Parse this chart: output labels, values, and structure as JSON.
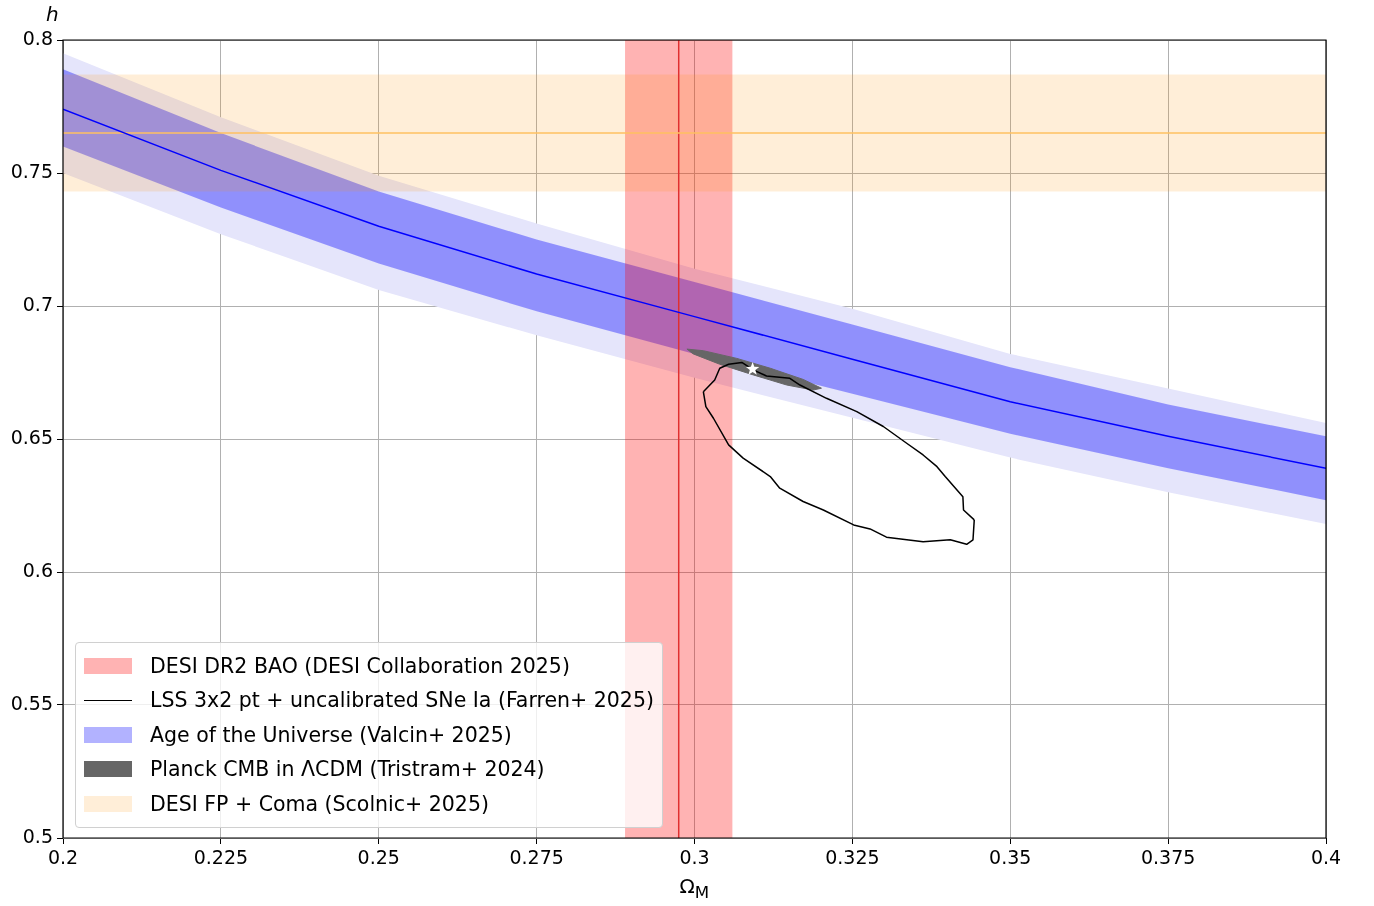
{
  "chart_data": {
    "type": "line",
    "xlabel": "Ω$_{M}$",
    "ylabel": "h",
    "xlim": [
      0.2,
      0.4
    ],
    "ylim": [
      0.5,
      0.8
    ],
    "xticks": [
      0.2,
      0.225,
      0.25,
      0.275,
      0.3,
      0.325,
      0.35,
      0.375,
      0.4
    ],
    "yticks": [
      0.5,
      0.55,
      0.6,
      0.65,
      0.7,
      0.75,
      0.8
    ],
    "grid": true,
    "legend": "bottom left",
    "bands": [
      {
        "axis": "x",
        "from": 0.289,
        "to": 0.306,
        "label": "DESI DR2 BAO (DESI Collaboration 2025)",
        "color": "#ffb3b3"
      },
      {
        "axis": "y",
        "from": 0.743,
        "to": 0.787,
        "label": "DESI FP + Coma (Scolnic+ 2025)",
        "color": "#ffeed8"
      }
    ],
    "ref_lines": [
      {
        "axis": "x",
        "value": 0.2975,
        "color": "#e03030"
      },
      {
        "axis": "y",
        "value": 0.765,
        "color": "#ffc060"
      }
    ],
    "series": [
      {
        "name": "LSS 3x2 pt + uncalibrated SNe Ia (Farren+ 2025)",
        "color": "#000000",
        "x": [
          0.3014,
          0.3032,
          0.304,
          0.3054,
          0.3075,
          0.3093,
          0.3114,
          0.3151,
          0.3167,
          0.3209,
          0.3257,
          0.3299,
          0.3336,
          0.3362,
          0.3384,
          0.3397,
          0.3425,
          0.3426,
          0.3443
        ],
        "values": [
          0.6678,
          0.6722,
          0.6766,
          0.6781,
          0.6788,
          0.676,
          0.6737,
          0.6728,
          0.6703,
          0.6653,
          0.6603,
          0.6547,
          0.6484,
          0.644,
          0.6396,
          0.6359,
          0.6283,
          0.6233,
          0.6196
        ]
      },
      {
        "color": "#000000",
        "x": [
          0.3014,
          0.3018,
          0.303,
          0.3054,
          0.3077,
          0.312,
          0.3135,
          0.3172,
          0.3204,
          0.3252,
          0.3278,
          0.3304,
          0.3362,
          0.3405,
          0.3431,
          0.3441,
          0.3443
        ],
        "values": [
          0.6678,
          0.6622,
          0.6578,
          0.6478,
          0.6428,
          0.6359,
          0.6315,
          0.6265,
          0.6233,
          0.6177,
          0.6162,
          0.6131,
          0.6114,
          0.6121,
          0.6104,
          0.6121,
          0.6196
        ]
      },
      {
        "type": "line",
        "color": "#e5e5fb",
        "x": [
          0.2,
          0.225,
          0.25,
          0.275,
          0.3,
          0.325,
          0.35,
          0.375,
          0.4
        ],
        "values": [
          null,
          null,
          null,
          null,
          null,
          null,
          null,
          null,
          null
        ],
        "lower": [
          0.75,
          0.727,
          0.706,
          0.689,
          0.673,
          0.658,
          0.643,
          0.63,
          0.618
        ],
        "upper": [
          0.795,
          0.771,
          0.749,
          0.731,
          0.714,
          0.699,
          0.682,
          0.669,
          0.656
        ]
      },
      {
        "name": "Age of the Universe (Valcin+ 2025)",
        "color": "#0000ff",
        "x": [
          0.2,
          0.225,
          0.25,
          0.275,
          0.3,
          0.325,
          0.35,
          0.375,
          0.4
        ],
        "values": [
          0.774,
          0.751,
          0.73,
          0.712,
          0.696,
          0.68,
          0.664,
          0.651,
          0.639
        ],
        "lower": [
          0.76,
          0.737,
          0.716,
          0.698,
          0.682,
          0.667,
          0.652,
          0.639,
          0.627
        ],
        "upper": [
          0.789,
          0.765,
          0.743,
          0.725,
          0.709,
          0.693,
          0.677,
          0.663,
          0.651
        ]
      },
      {
        "name": "Planck CMB in ΛCDM (Tristram+ 2024)",
        "type": "area",
        "color": "#666666",
        "x": [
          0.2988,
          0.3014,
          0.3067,
          0.312,
          0.3172,
          0.3201,
          0.3188,
          0.3146,
          0.3093,
          0.304,
          0.2998,
          0.2988
        ],
        "values": [
          0.6838,
          0.6832,
          0.6803,
          0.6766,
          0.6724,
          0.6691,
          0.6684,
          0.6703,
          0.6741,
          0.6781,
          0.682,
          0.6838
        ]
      },
      {
        "type": "scatter",
        "color": "#ffffff",
        "marker": "star",
        "x": [
          0.3092
        ],
        "values": [
          0.6763
        ]
      }
    ]
  }
}
